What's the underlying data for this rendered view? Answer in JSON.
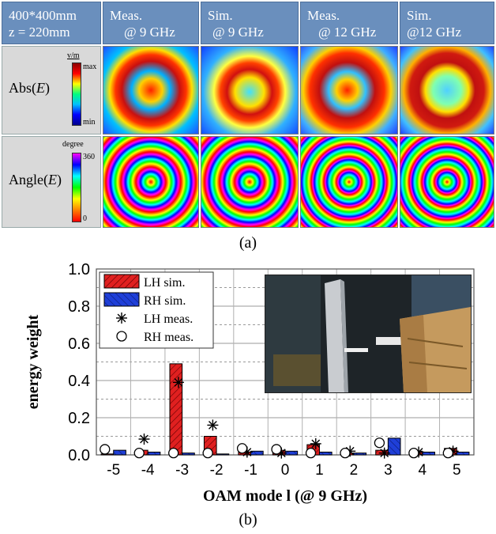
{
  "panel_a": {
    "header_left": [
      "400*400mm",
      "z = 220mm"
    ],
    "columns": [
      {
        "line1": "Meas.",
        "line2": "@ 9 GHz"
      },
      {
        "line1": "Sim.",
        "line2": "@ 9 GHz"
      },
      {
        "line1": "Meas.",
        "line2": "@ 12 GHz"
      },
      {
        "line1": "Sim.",
        "line2": "@12 GHz"
      }
    ],
    "rows": [
      {
        "label": "Abs(E)",
        "unit": "v/m",
        "top": "max",
        "bottom": "min"
      },
      {
        "label": "Angle(E)",
        "unit": "degree",
        "top": "360",
        "bottom": "0"
      }
    ],
    "caption": "(a)"
  },
  "caption_b": "(b)",
  "chart_data": {
    "type": "bar",
    "xlabel": "OAM mode l (@ 9 GHz)",
    "ylabel": "energy weight",
    "ylim": [
      0,
      1.0
    ],
    "yticks": [
      "0.0",
      "0.2",
      "0.4",
      "0.6",
      "0.8",
      "1.0"
    ],
    "categories": [
      "-5",
      "-4",
      "-3",
      "-2",
      "-1",
      "0",
      "1",
      "2",
      "3",
      "4",
      "5"
    ],
    "series": [
      {
        "name": "LH sim.",
        "kind": "bar",
        "color": "#e02020",
        "values": [
          0.005,
          0.025,
          0.49,
          0.1,
          0.015,
          0.025,
          0.055,
          0.01,
          0.025,
          0.02,
          0.035
        ]
      },
      {
        "name": "RH sim.",
        "kind": "bar",
        "color": "#1f3fd8",
        "values": [
          0.025,
          0.015,
          0.01,
          0.005,
          0.02,
          0.02,
          0.015,
          0.01,
          0.09,
          0.015,
          0.015
        ]
      },
      {
        "name": "LH meas.",
        "kind": "marker-star",
        "values": [
          null,
          0.085,
          0.39,
          0.16,
          0.015,
          0.01,
          0.06,
          0.02,
          0.01,
          0.015,
          0.02
        ]
      },
      {
        "name": "RH meas.",
        "kind": "marker-circle",
        "values": [
          0.03,
          0.01,
          0.01,
          0.01,
          0.035,
          0.03,
          0.01,
          0.01,
          0.065,
          0.01,
          0.01
        ]
      }
    ],
    "grid": true,
    "legend": "top-left",
    "inset": "photo (top-right)"
  }
}
